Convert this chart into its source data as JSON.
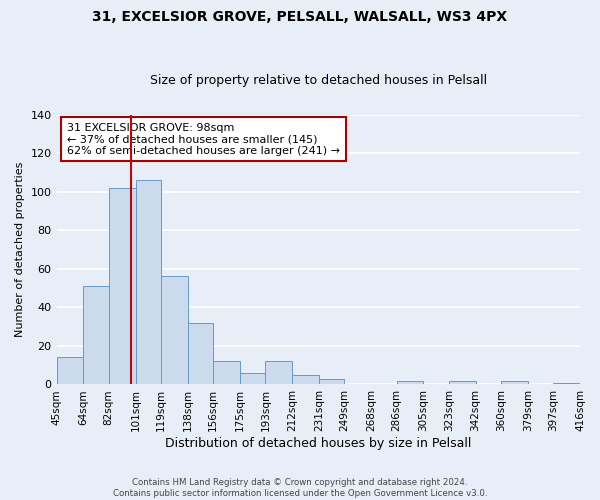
{
  "title": "31, EXCELSIOR GROVE, PELSALL, WALSALL, WS3 4PX",
  "subtitle": "Size of property relative to detached houses in Pelsall",
  "xlabel": "Distribution of detached houses by size in Pelsall",
  "ylabel": "Number of detached properties",
  "bin_edges": [
    45,
    64,
    82,
    101,
    119,
    138,
    156,
    175,
    193,
    212,
    231,
    249,
    268,
    286,
    305,
    323,
    342,
    360,
    379,
    397,
    416
  ],
  "bar_heights": [
    14,
    51,
    102,
    106,
    56,
    32,
    12,
    6,
    12,
    5,
    3,
    0,
    0,
    2,
    0,
    2,
    0,
    2,
    0,
    1
  ],
  "bar_color": "#ccdaed",
  "bar_edge_color": "#6699cc",
  "background_color": "#e8eef8",
  "grid_color": "#ffffff",
  "red_line_x": 98,
  "ylim": [
    0,
    140
  ],
  "yticks": [
    0,
    20,
    40,
    60,
    80,
    100,
    120,
    140
  ],
  "tick_labels": [
    "45sqm",
    "64sqm",
    "82sqm",
    "101sqm",
    "119sqm",
    "138sqm",
    "156sqm",
    "175sqm",
    "193sqm",
    "212sqm",
    "231sqm",
    "249sqm",
    "268sqm",
    "286sqm",
    "305sqm",
    "323sqm",
    "342sqm",
    "360sqm",
    "379sqm",
    "397sqm",
    "416sqm"
  ],
  "annotation_title": "31 EXCELSIOR GROVE: 98sqm",
  "annotation_line1": "← 37% of detached houses are smaller (145)",
  "annotation_line2": "62% of semi-detached houses are larger (241) →",
  "annotation_box_color": "#ffffff",
  "annotation_box_edge": "#aa0000",
  "footer1": "Contains HM Land Registry data © Crown copyright and database right 2024.",
  "footer2": "Contains public sector information licensed under the Open Government Licence v3.0."
}
